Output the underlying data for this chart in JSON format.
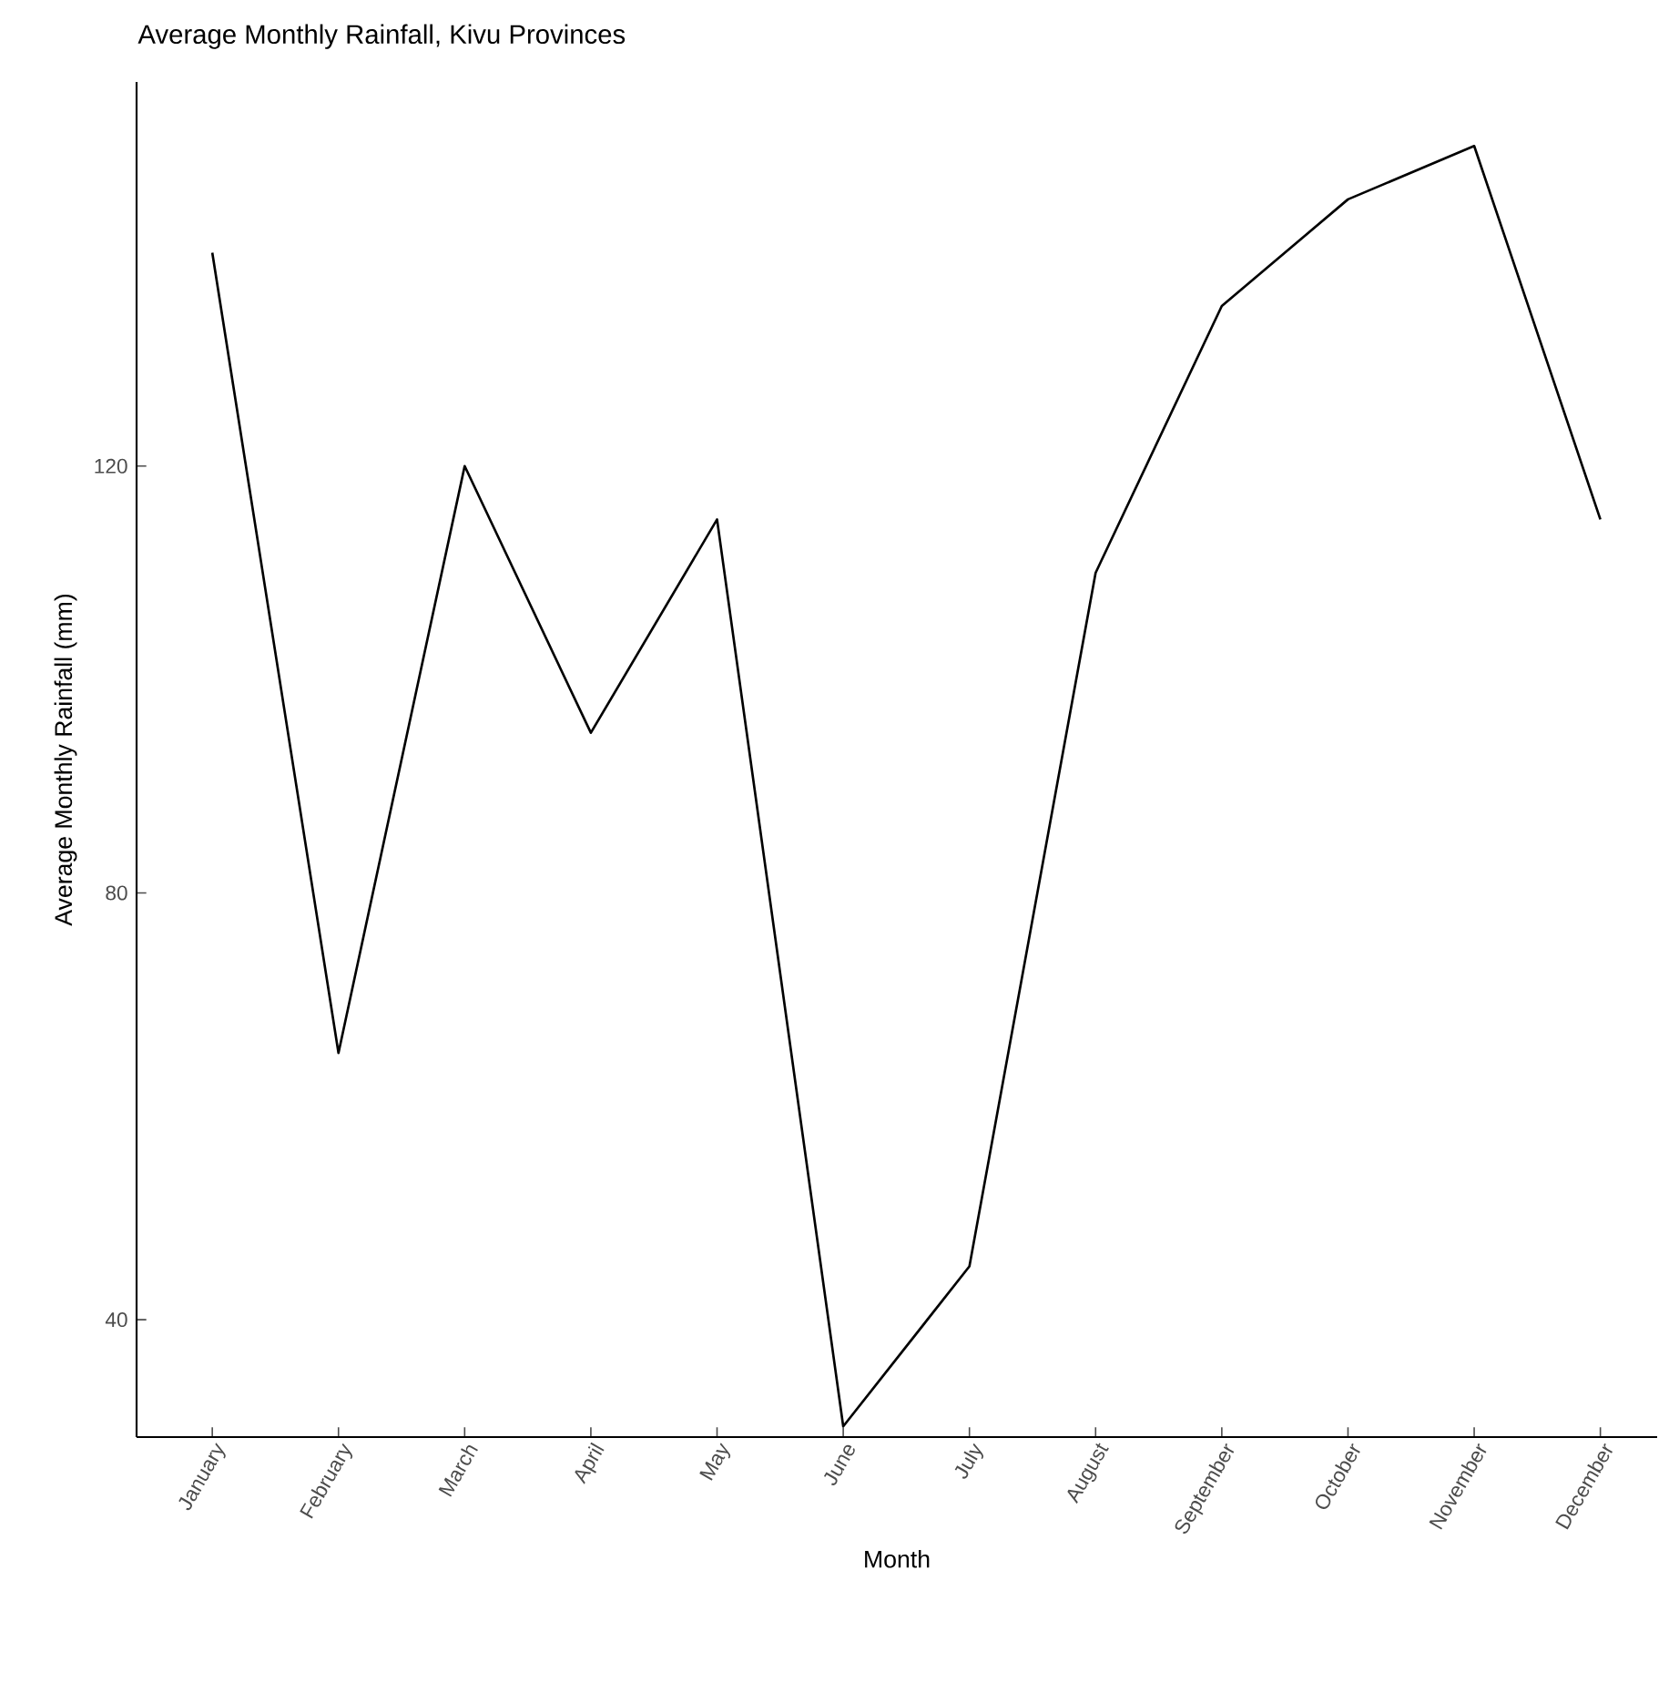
{
  "chart_data": {
    "type": "line",
    "title": "Average Monthly Rainfall, Kivu Provinces",
    "xlabel": "Month",
    "ylabel": "Average Monthly Rainfall (mm)",
    "categories": [
      "January",
      "February",
      "March",
      "April",
      "May",
      "June",
      "July",
      "August",
      "September",
      "October",
      "November",
      "December"
    ],
    "values": [
      140,
      65,
      120,
      95,
      115,
      30,
      45,
      110,
      135,
      145,
      150,
      115
    ],
    "color": "#000000",
    "ylim": [
      29,
      156
    ],
    "yticks": [
      40,
      80,
      120
    ]
  }
}
